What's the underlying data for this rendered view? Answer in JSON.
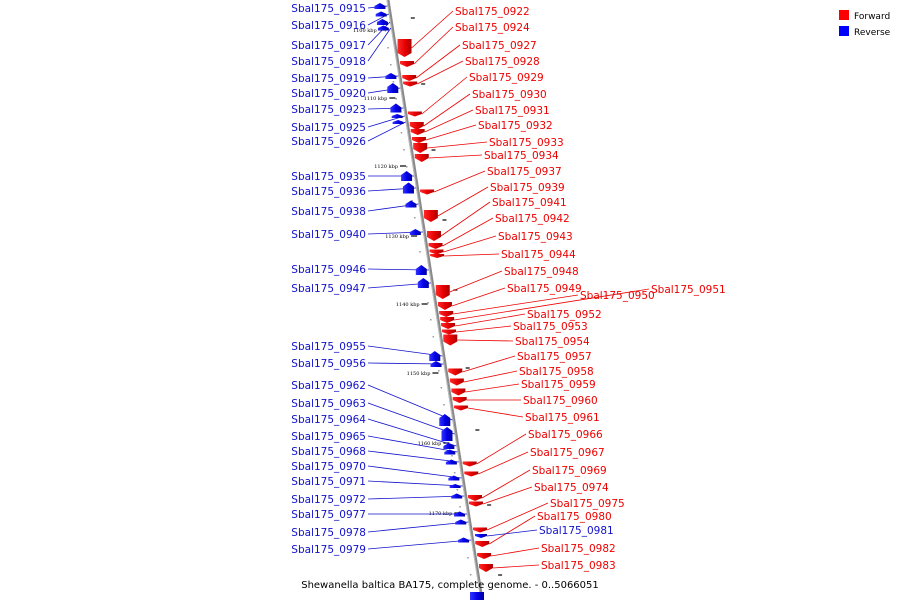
{
  "title": "Shewanella baltica BA175, complete genome. - 0..5066051",
  "legend": [
    {
      "label": "Forward",
      "color": "#ff0000"
    },
    {
      "label": "Reverse",
      "color": "#0000ff"
    }
  ],
  "ticks": [
    {
      "label": "1100 kbp",
      "pos": 1100
    },
    {
      "label": "1110 kbp",
      "pos": 1110
    },
    {
      "label": "1120 kbp",
      "pos": 1120
    },
    {
      "label": "1130 kbp",
      "pos": 1130
    },
    {
      "label": "1140 kbp",
      "pos": 1140
    },
    {
      "label": "1150 kbp",
      "pos": 1150
    },
    {
      "label": "1160 kbp",
      "pos": 1160
    },
    {
      "label": "1170 kbp",
      "pos": 1170
    }
  ],
  "reverse_genes": [
    {
      "label": "Sbal175_0915"
    },
    {
      "label": "Sbal175_0916"
    },
    {
      "label": "Sbal175_0917"
    },
    {
      "label": "Sbal175_0918"
    },
    {
      "label": "Sbal175_0919"
    },
    {
      "label": "Sbal175_0920"
    },
    {
      "label": "Sbal175_0923"
    },
    {
      "label": "Sbal175_0925"
    },
    {
      "label": "Sbal175_0926"
    },
    {
      "label": "Sbal175_0935"
    },
    {
      "label": "Sbal175_0936"
    },
    {
      "label": "Sbal175_0938"
    },
    {
      "label": "Sbal175_0940"
    },
    {
      "label": "Sbal175_0946"
    },
    {
      "label": "Sbal175_0947"
    },
    {
      "label": "Sbal175_0955"
    },
    {
      "label": "Sbal175_0956"
    },
    {
      "label": "Sbal175_0962"
    },
    {
      "label": "Sbal175_0963"
    },
    {
      "label": "Sbal175_0964"
    },
    {
      "label": "Sbal175_0965"
    },
    {
      "label": "Sbal175_0968"
    },
    {
      "label": "Sbal175_0970"
    },
    {
      "label": "Sbal175_0971"
    },
    {
      "label": "Sbal175_0972"
    },
    {
      "label": "Sbal175_0977"
    },
    {
      "label": "Sbal175_0978"
    },
    {
      "label": "Sbal175_0979"
    }
  ],
  "forward_genes": [
    {
      "label": "Sbal175_0922"
    },
    {
      "label": "Sbal175_0924"
    },
    {
      "label": "Sbal175_0927"
    },
    {
      "label": "Sbal175_0928"
    },
    {
      "label": "Sbal175_0929"
    },
    {
      "label": "Sbal175_0930"
    },
    {
      "label": "Sbal175_0931"
    },
    {
      "label": "Sbal175_0932"
    },
    {
      "label": "Sbal175_0933"
    },
    {
      "label": "Sbal175_0934"
    },
    {
      "label": "Sbal175_0937"
    },
    {
      "label": "Sbal175_0939"
    },
    {
      "label": "Sbal175_0941"
    },
    {
      "label": "Sbal175_0942"
    },
    {
      "label": "Sbal175_0943"
    },
    {
      "label": "Sbal175_0944"
    },
    {
      "label": "Sbal175_0948"
    },
    {
      "label": "Sbal175_0949"
    },
    {
      "label": "Sbal175_0950"
    },
    {
      "label": "Sbal175_0951"
    },
    {
      "label": "Sbal175_0952"
    },
    {
      "label": "Sbal175_0953"
    },
    {
      "label": "Sbal175_0954"
    },
    {
      "label": "Sbal175_0957"
    },
    {
      "label": "Sbal175_0958"
    },
    {
      "label": "Sbal175_0959"
    },
    {
      "label": "Sbal175_0960"
    },
    {
      "label": "Sbal175_0961"
    },
    {
      "label": "Sbal175_0966"
    },
    {
      "label": "Sbal175_0967"
    },
    {
      "label": "Sbal175_0969"
    },
    {
      "label": "Sbal175_0974"
    },
    {
      "label": "Sbal175_0975"
    },
    {
      "label": "Sbal175_0980"
    },
    {
      "label": "Sbal175_0982"
    },
    {
      "label": "Sbal175_0983"
    }
  ],
  "other_genes": [
    {
      "label": "Sbal175_0981",
      "color": "#1111cc"
    }
  ]
}
